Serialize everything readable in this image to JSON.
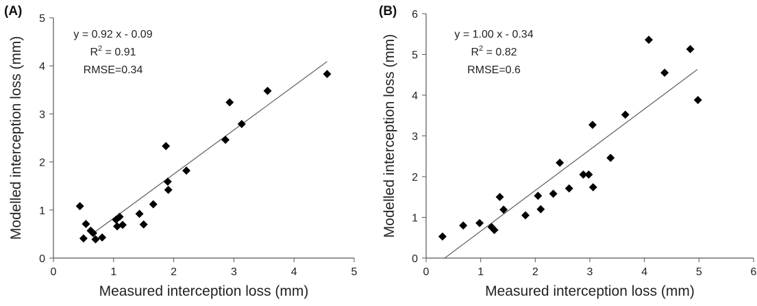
{
  "chart_data": [
    {
      "type": "scatter",
      "panel_label": "(A)",
      "xlabel": "Measured interception loss (mm)",
      "ylabel": "Modelled interception loss (mm)",
      "xlim": [
        0,
        5
      ],
      "ylim": [
        0,
        5
      ],
      "xticks": [
        "0",
        "1",
        "2",
        "3",
        "4",
        "5"
      ],
      "yticks": [
        "0",
        "1",
        "2",
        "3",
        "4",
        "5"
      ],
      "grid": false,
      "marker": "diamond",
      "color": "#000000",
      "equation": "y = 0.92 x - 0.09",
      "r2_label": "R",
      "r2_sup": "2",
      "r2_value": " = 0.91",
      "rmse": "RMSE=0.34",
      "fit_line": {
        "x": [
          0.62,
          4.55
        ],
        "y": [
          0.48,
          4.09
        ]
      },
      "points": [
        {
          "x": 0.44,
          "y": 1.08
        },
        {
          "x": 0.5,
          "y": 0.41
        },
        {
          "x": 0.54,
          "y": 0.71
        },
        {
          "x": 0.62,
          "y": 0.57
        },
        {
          "x": 0.66,
          "y": 0.52
        },
        {
          "x": 0.7,
          "y": 0.39
        },
        {
          "x": 0.81,
          "y": 0.43
        },
        {
          "x": 1.04,
          "y": 0.8
        },
        {
          "x": 1.06,
          "y": 0.66
        },
        {
          "x": 1.1,
          "y": 0.86
        },
        {
          "x": 1.15,
          "y": 0.69
        },
        {
          "x": 1.43,
          "y": 0.92
        },
        {
          "x": 1.5,
          "y": 0.7
        },
        {
          "x": 1.66,
          "y": 1.12
        },
        {
          "x": 1.87,
          "y": 2.33
        },
        {
          "x": 1.9,
          "y": 1.59
        },
        {
          "x": 1.91,
          "y": 1.42
        },
        {
          "x": 2.21,
          "y": 1.82
        },
        {
          "x": 2.86,
          "y": 2.46
        },
        {
          "x": 2.93,
          "y": 3.24
        },
        {
          "x": 3.13,
          "y": 2.79
        },
        {
          "x": 3.56,
          "y": 3.48
        },
        {
          "x": 4.55,
          "y": 3.83
        }
      ]
    },
    {
      "type": "scatter",
      "panel_label": "(B)",
      "xlabel": "Measured interception loss (mm)",
      "ylabel": "Modelled interception loss (mm)",
      "xlim": [
        0,
        6
      ],
      "ylim": [
        0,
        6
      ],
      "xticks": [
        "0",
        "1",
        "2",
        "3",
        "4",
        "5",
        "6"
      ],
      "yticks": [
        "0",
        "1",
        "2",
        "3",
        "4",
        "5",
        "6"
      ],
      "grid": false,
      "marker": "diamond",
      "color": "#000000",
      "equation": "y = 1.00 x - 0.34",
      "r2_label": "R",
      "r2_sup": "2",
      "r2_value": " = 0.82",
      "rmse": "RMSE=0.6",
      "fit_line": {
        "x": [
          0.34,
          4.97
        ],
        "y": [
          0.0,
          4.63
        ]
      },
      "points": [
        {
          "x": 0.3,
          "y": 0.53
        },
        {
          "x": 0.68,
          "y": 0.8
        },
        {
          "x": 0.98,
          "y": 0.86
        },
        {
          "x": 1.2,
          "y": 0.76
        },
        {
          "x": 1.25,
          "y": 0.69
        },
        {
          "x": 1.35,
          "y": 1.5
        },
        {
          "x": 1.42,
          "y": 1.19
        },
        {
          "x": 1.82,
          "y": 1.05
        },
        {
          "x": 2.05,
          "y": 1.53
        },
        {
          "x": 2.1,
          "y": 1.2
        },
        {
          "x": 2.33,
          "y": 1.58
        },
        {
          "x": 2.45,
          "y": 2.34
        },
        {
          "x": 2.62,
          "y": 1.71
        },
        {
          "x": 2.88,
          "y": 2.05
        },
        {
          "x": 2.98,
          "y": 2.05
        },
        {
          "x": 3.05,
          "y": 3.27
        },
        {
          "x": 3.06,
          "y": 1.74
        },
        {
          "x": 3.38,
          "y": 2.46
        },
        {
          "x": 3.65,
          "y": 3.52
        },
        {
          "x": 4.08,
          "y": 5.36
        },
        {
          "x": 4.37,
          "y": 4.55
        },
        {
          "x": 4.84,
          "y": 5.13
        },
        {
          "x": 4.98,
          "y": 3.88
        }
      ]
    }
  ]
}
